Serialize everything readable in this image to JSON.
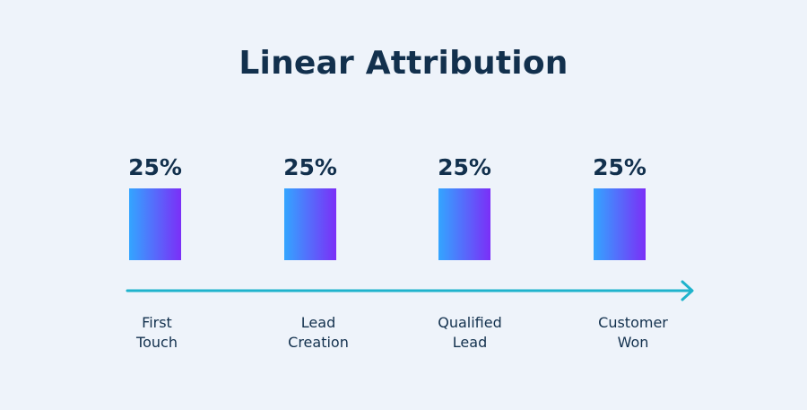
{
  "chart_data": {
    "type": "bar",
    "title": "Linear Attribution",
    "categories": [
      [
        "First",
        "Touch"
      ],
      [
        "Lead",
        "Creation"
      ],
      [
        "Qualified",
        "Lead"
      ],
      [
        "Customer",
        "Won"
      ]
    ],
    "values": [
      25,
      25,
      25,
      25
    ],
    "value_labels": [
      "25%",
      "25%",
      "25%",
      "25%"
    ],
    "xlabel": "",
    "ylabel": "",
    "grid": false,
    "colors": {
      "bar_gradient_start": "#33a5ff",
      "bar_gradient_end": "#7b2ff7",
      "axis_arrow": "#1fb3cc",
      "text": "#12304d",
      "background": "#eef3fa"
    }
  }
}
